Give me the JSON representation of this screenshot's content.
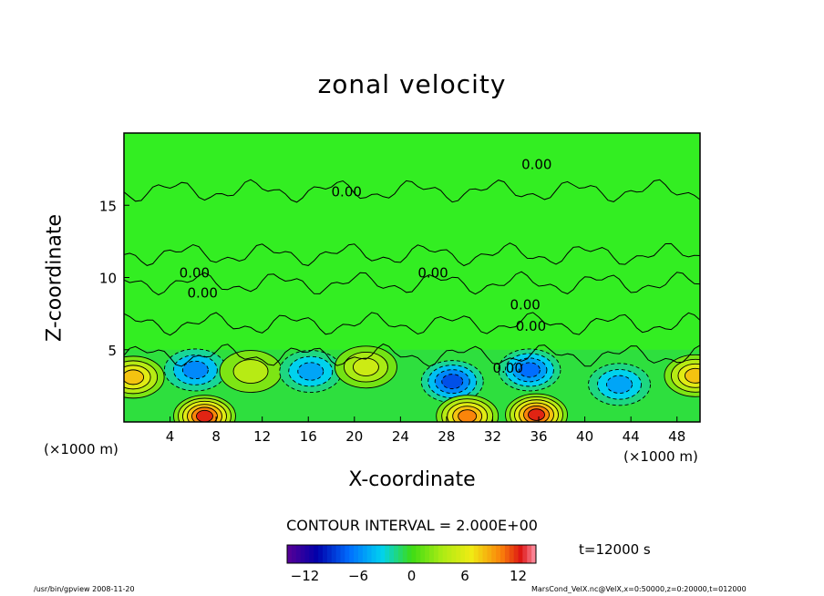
{
  "chart_data": {
    "type": "heatmap",
    "title": "zonal velocity",
    "xlabel": "X-coordinate",
    "ylabel": "Z-coordinate",
    "x_unit": "(×1000 m)",
    "y_unit": "(×1000 m)",
    "xlim": [
      0,
      50
    ],
    "ylim": [
      0,
      20
    ],
    "xticks": [
      4,
      8,
      12,
      16,
      20,
      24,
      28,
      32,
      36,
      40,
      44,
      48
    ],
    "yticks": [
      5,
      10,
      15
    ],
    "contour_interval_text": "CONTOUR INTERVAL = 2.000E+00",
    "contour_labels": [
      "0.00",
      "0.00",
      "0.00",
      "0.00",
      "0.00",
      "0.00",
      "0.00",
      "0.00"
    ],
    "colorbar": {
      "range": [
        -14,
        14
      ],
      "ticks": [
        -12,
        -6,
        0,
        6,
        12
      ]
    },
    "time_text": "t=12000 s",
    "features": [
      {
        "x": 0.8,
        "z": 3.1,
        "value": 8
      },
      {
        "x": 7.0,
        "z": 0.4,
        "value": 12
      },
      {
        "x": 6.2,
        "z": 3.6,
        "value": -6
      },
      {
        "x": 11.0,
        "z": 3.5,
        "value": 4
      },
      {
        "x": 16.2,
        "z": 3.5,
        "value": -5
      },
      {
        "x": 21.0,
        "z": 3.8,
        "value": 5
      },
      {
        "x": 28.5,
        "z": 2.8,
        "value": -8
      },
      {
        "x": 29.8,
        "z": 0.4,
        "value": 10
      },
      {
        "x": 35.2,
        "z": 3.6,
        "value": -7
      },
      {
        "x": 35.8,
        "z": 0.5,
        "value": 12
      },
      {
        "x": 43.0,
        "z": 2.6,
        "value": -5
      },
      {
        "x": 49.6,
        "z": 3.2,
        "value": 8
      }
    ]
  },
  "footer": {
    "left": "/usr/bin/gpview   2008-11-20",
    "right": "MarsCond_VelX.nc@VelX,x=0:50000,z=0:20000,t=012000"
  },
  "colors": {
    "zero": "#33ee22",
    "positive": "#ee3311",
    "negative": "#11aaee"
  }
}
